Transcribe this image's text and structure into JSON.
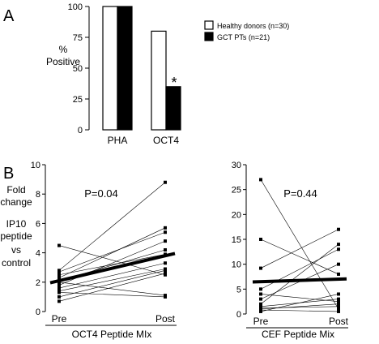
{
  "chart_data": [
    {
      "type": "bar",
      "panel": "A",
      "ylabel": [
        "%",
        "Positive"
      ],
      "ylim": [
        0,
        100
      ],
      "yticks": [
        "0",
        "25",
        "50",
        "75",
        "100"
      ],
      "categories": [
        "PHA",
        "OCT4"
      ],
      "series": [
        {
          "name": "Healthy donors (n=30)",
          "values": [
            100,
            80
          ],
          "color": "#ffffff"
        },
        {
          "name": "GCT PTs (n=21)",
          "values": [
            100,
            35
          ],
          "color": "#000000"
        }
      ],
      "annotation": "*",
      "legend": "right"
    },
    {
      "type": "line",
      "panel": "B",
      "xlabel": "OCT4 Peptide MIx",
      "ylabel": [
        "Fold",
        "change",
        "IP10",
        "peptide",
        "vs",
        "control"
      ],
      "ylim": [
        0,
        10
      ],
      "yticks": [
        "0",
        "2",
        "4",
        "6",
        "8",
        "10"
      ],
      "categories": [
        "Pre",
        "Post"
      ],
      "pvalue": "P=0.04",
      "pairs": [
        [
          4.5,
          2.5
        ],
        [
          2.8,
          8.8
        ],
        [
          2.7,
          5.4
        ],
        [
          2.5,
          3.9
        ],
        [
          2.3,
          5.7
        ],
        [
          2.1,
          4.2
        ],
        [
          2.0,
          1.1
        ],
        [
          1.8,
          4.8
        ],
        [
          1.6,
          3.3
        ],
        [
          1.4,
          2.9
        ],
        [
          1.3,
          1.0
        ],
        [
          1.0,
          2.8
        ],
        [
          0.7,
          2.6
        ]
      ],
      "trend": [
        2.1,
        3.8
      ]
    },
    {
      "type": "line",
      "panel": "B-right",
      "xlabel": "CEF Peptide Mix",
      "ylim": [
        0,
        30
      ],
      "yticks": [
        "0",
        "5",
        "10",
        "15",
        "20",
        "25",
        "30"
      ],
      "categories": [
        "Pre",
        "Post"
      ],
      "pvalue": "P=0.44",
      "pairs": [
        [
          27,
          1
        ],
        [
          15,
          8
        ],
        [
          9.2,
          17
        ],
        [
          5,
          13
        ],
        [
          4,
          2.5
        ],
        [
          3,
          10
        ],
        [
          2,
          14
        ],
        [
          1.5,
          3
        ],
        [
          1.2,
          1.5
        ],
        [
          1,
          2
        ],
        [
          0.8,
          0.5
        ],
        [
          0.5,
          4
        ]
      ],
      "trend": [
        6.5,
        7.0
      ]
    }
  ],
  "panel_labels": [
    "A",
    "B"
  ]
}
